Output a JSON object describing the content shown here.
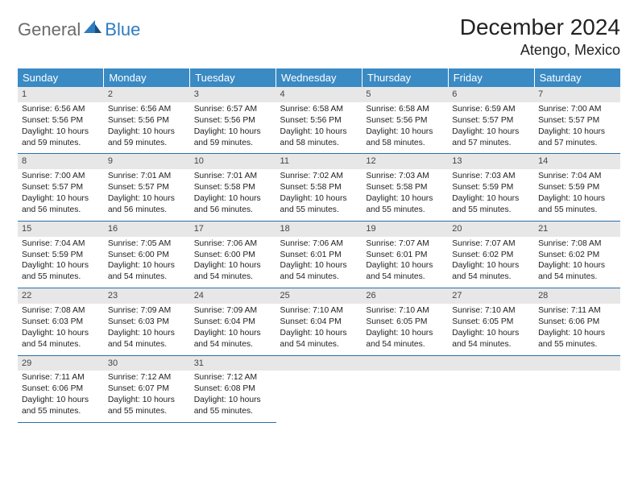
{
  "logo": {
    "general": "General",
    "blue": "Blue"
  },
  "title": "December 2024",
  "location": "Atengo, Mexico",
  "colors": {
    "header_bg": "#3a8ac4",
    "header_text": "#ffffff",
    "daynum_bg": "#e7e7e7",
    "border": "#2d6fa8",
    "logo_gray": "#6b6b6b",
    "logo_blue": "#2d7cc0"
  },
  "weekdays": [
    "Sunday",
    "Monday",
    "Tuesday",
    "Wednesday",
    "Thursday",
    "Friday",
    "Saturday"
  ],
  "weeks": [
    [
      {
        "n": "1",
        "sr": "6:56 AM",
        "ss": "5:56 PM",
        "dl": "10 hours and 59 minutes."
      },
      {
        "n": "2",
        "sr": "6:56 AM",
        "ss": "5:56 PM",
        "dl": "10 hours and 59 minutes."
      },
      {
        "n": "3",
        "sr": "6:57 AM",
        "ss": "5:56 PM",
        "dl": "10 hours and 59 minutes."
      },
      {
        "n": "4",
        "sr": "6:58 AM",
        "ss": "5:56 PM",
        "dl": "10 hours and 58 minutes."
      },
      {
        "n": "5",
        "sr": "6:58 AM",
        "ss": "5:56 PM",
        "dl": "10 hours and 58 minutes."
      },
      {
        "n": "6",
        "sr": "6:59 AM",
        "ss": "5:57 PM",
        "dl": "10 hours and 57 minutes."
      },
      {
        "n": "7",
        "sr": "7:00 AM",
        "ss": "5:57 PM",
        "dl": "10 hours and 57 minutes."
      }
    ],
    [
      {
        "n": "8",
        "sr": "7:00 AM",
        "ss": "5:57 PM",
        "dl": "10 hours and 56 minutes."
      },
      {
        "n": "9",
        "sr": "7:01 AM",
        "ss": "5:57 PM",
        "dl": "10 hours and 56 minutes."
      },
      {
        "n": "10",
        "sr": "7:01 AM",
        "ss": "5:58 PM",
        "dl": "10 hours and 56 minutes."
      },
      {
        "n": "11",
        "sr": "7:02 AM",
        "ss": "5:58 PM",
        "dl": "10 hours and 55 minutes."
      },
      {
        "n": "12",
        "sr": "7:03 AM",
        "ss": "5:58 PM",
        "dl": "10 hours and 55 minutes."
      },
      {
        "n": "13",
        "sr": "7:03 AM",
        "ss": "5:59 PM",
        "dl": "10 hours and 55 minutes."
      },
      {
        "n": "14",
        "sr": "7:04 AM",
        "ss": "5:59 PM",
        "dl": "10 hours and 55 minutes."
      }
    ],
    [
      {
        "n": "15",
        "sr": "7:04 AM",
        "ss": "5:59 PM",
        "dl": "10 hours and 55 minutes."
      },
      {
        "n": "16",
        "sr": "7:05 AM",
        "ss": "6:00 PM",
        "dl": "10 hours and 54 minutes."
      },
      {
        "n": "17",
        "sr": "7:06 AM",
        "ss": "6:00 PM",
        "dl": "10 hours and 54 minutes."
      },
      {
        "n": "18",
        "sr": "7:06 AM",
        "ss": "6:01 PM",
        "dl": "10 hours and 54 minutes."
      },
      {
        "n": "19",
        "sr": "7:07 AM",
        "ss": "6:01 PM",
        "dl": "10 hours and 54 minutes."
      },
      {
        "n": "20",
        "sr": "7:07 AM",
        "ss": "6:02 PM",
        "dl": "10 hours and 54 minutes."
      },
      {
        "n": "21",
        "sr": "7:08 AM",
        "ss": "6:02 PM",
        "dl": "10 hours and 54 minutes."
      }
    ],
    [
      {
        "n": "22",
        "sr": "7:08 AM",
        "ss": "6:03 PM",
        "dl": "10 hours and 54 minutes."
      },
      {
        "n": "23",
        "sr": "7:09 AM",
        "ss": "6:03 PM",
        "dl": "10 hours and 54 minutes."
      },
      {
        "n": "24",
        "sr": "7:09 AM",
        "ss": "6:04 PM",
        "dl": "10 hours and 54 minutes."
      },
      {
        "n": "25",
        "sr": "7:10 AM",
        "ss": "6:04 PM",
        "dl": "10 hours and 54 minutes."
      },
      {
        "n": "26",
        "sr": "7:10 AM",
        "ss": "6:05 PM",
        "dl": "10 hours and 54 minutes."
      },
      {
        "n": "27",
        "sr": "7:10 AM",
        "ss": "6:05 PM",
        "dl": "10 hours and 54 minutes."
      },
      {
        "n": "28",
        "sr": "7:11 AM",
        "ss": "6:06 PM",
        "dl": "10 hours and 55 minutes."
      }
    ],
    [
      {
        "n": "29",
        "sr": "7:11 AM",
        "ss": "6:06 PM",
        "dl": "10 hours and 55 minutes."
      },
      {
        "n": "30",
        "sr": "7:12 AM",
        "ss": "6:07 PM",
        "dl": "10 hours and 55 minutes."
      },
      {
        "n": "31",
        "sr": "7:12 AM",
        "ss": "6:08 PM",
        "dl": "10 hours and 55 minutes."
      },
      null,
      null,
      null,
      null
    ]
  ],
  "labels": {
    "sunrise": "Sunrise:",
    "sunset": "Sunset:",
    "daylight": "Daylight:"
  }
}
